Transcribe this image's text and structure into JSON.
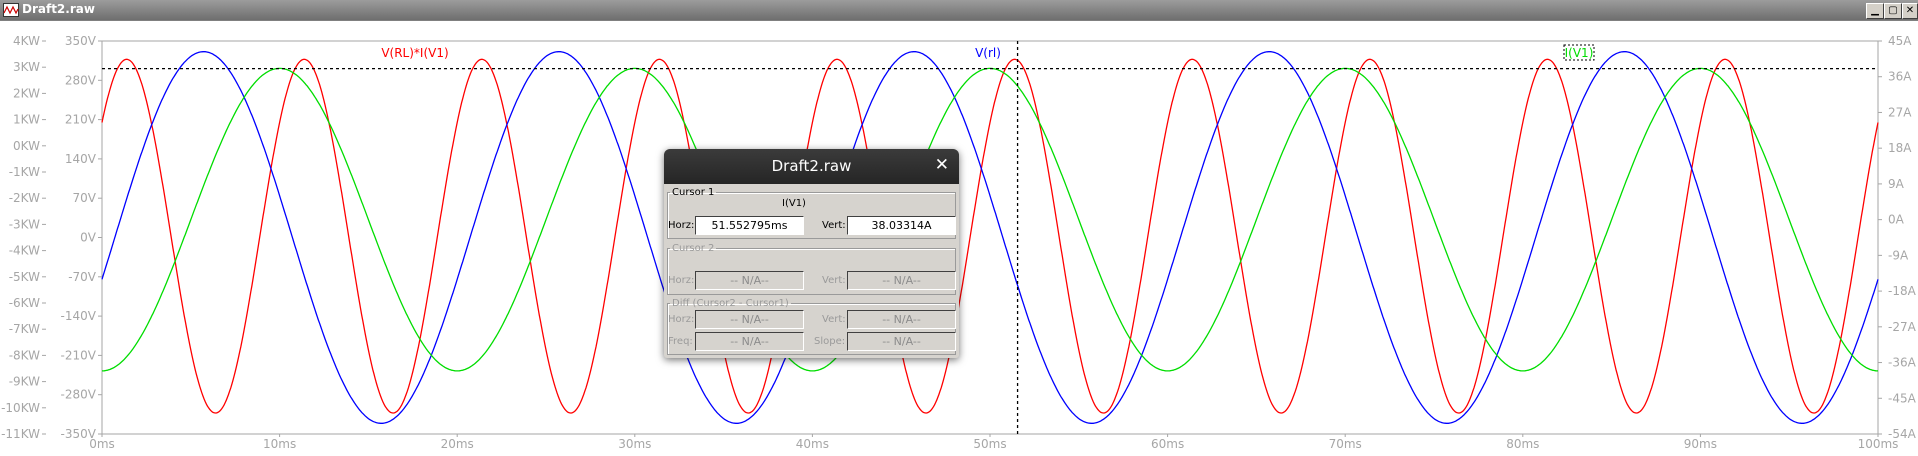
{
  "window": {
    "title": "Draft2.raw"
  },
  "plot": {
    "traces": [
      {
        "label": "V(RL)*I(V1)",
        "color": "#ff0000"
      },
      {
        "label": "V(rl)",
        "color": "#0000ff"
      },
      {
        "label": "I(V1)",
        "color": "#00dd00"
      }
    ],
    "left_axis_labels": [
      "4KW",
      "3KW",
      "2KW",
      "1KW",
      "0KW",
      "-1KW",
      "-2KW",
      "-3KW",
      "-4KW",
      "-5KW",
      "-6KW",
      "-7KW",
      "-8KW",
      "-9KW",
      "-10KW",
      "-11KW"
    ],
    "mid_axis_labels": [
      "350V",
      "280V",
      "210V",
      "140V",
      "70V",
      "0V",
      "-70V",
      "-140V",
      "-210V",
      "-280V",
      "-350V"
    ],
    "right_axis_labels": [
      "45A",
      "36A",
      "27A",
      "18A",
      "9A",
      "0A",
      "-9A",
      "-18A",
      "-27A",
      "-36A",
      "-45A",
      "-54A"
    ],
    "x_axis_labels": [
      "0ms",
      "10ms",
      "20ms",
      "30ms",
      "40ms",
      "50ms",
      "60ms",
      "70ms",
      "80ms",
      "90ms",
      "100ms"
    ],
    "colors": {
      "grid_text": "#a6a6a6",
      "cursor": "#000000"
    }
  },
  "chart_data": {
    "type": "line",
    "x_range_ms": [
      0,
      100
    ],
    "ranges": {
      "power_kw": [
        -11,
        4
      ],
      "voltage_v": [
        -350,
        350
      ],
      "current_a": [
        -54,
        45
      ]
    },
    "series": [
      {
        "name": "V(RL)*I(V1)",
        "color": "#ff0000",
        "axis": "power",
        "frequency_hz": 100,
        "min_kw": -10.2,
        "max_kw": 3.3,
        "phase_deg": 40
      },
      {
        "name": "V(rl)",
        "color": "#0000ff",
        "axis": "voltage",
        "frequency_hz": 50,
        "amplitude_v": 331,
        "phase_deg": -13
      },
      {
        "name": "I(V1)",
        "color": "#00dd00",
        "axis": "current",
        "frequency_hz": 50,
        "amplitude_a": 38.1,
        "phase_deg": -90
      }
    ],
    "cursor": {
      "x_ms": 51.552795,
      "y_a": 38.03314
    },
    "grid": false
  },
  "dialog": {
    "title": "Draft2.raw",
    "close_glyph": "✕",
    "cursor1": {
      "legend": "Cursor 1",
      "trace_name": "I(V1)",
      "horz_label": "Horz:",
      "horz_value": "51.552795ms",
      "vert_label": "Vert:",
      "vert_value": "38.03314A"
    },
    "cursor2": {
      "legend": "Cursor 2",
      "horz_label": "Horz:",
      "horz_value": "-- N/A--",
      "vert_label": "Vert:",
      "vert_value": "-- N/A--"
    },
    "diff": {
      "legend": "Diff (Cursor2 - Cursor1)",
      "horz_label": "Horz:",
      "horz_value": "-- N/A--",
      "vert_label": "Vert:",
      "vert_value": "-- N/A--",
      "freq_label": "Freq:",
      "freq_value": "-- N/A--",
      "slope_label": "Slope:",
      "slope_value": "-- N/A--"
    }
  }
}
